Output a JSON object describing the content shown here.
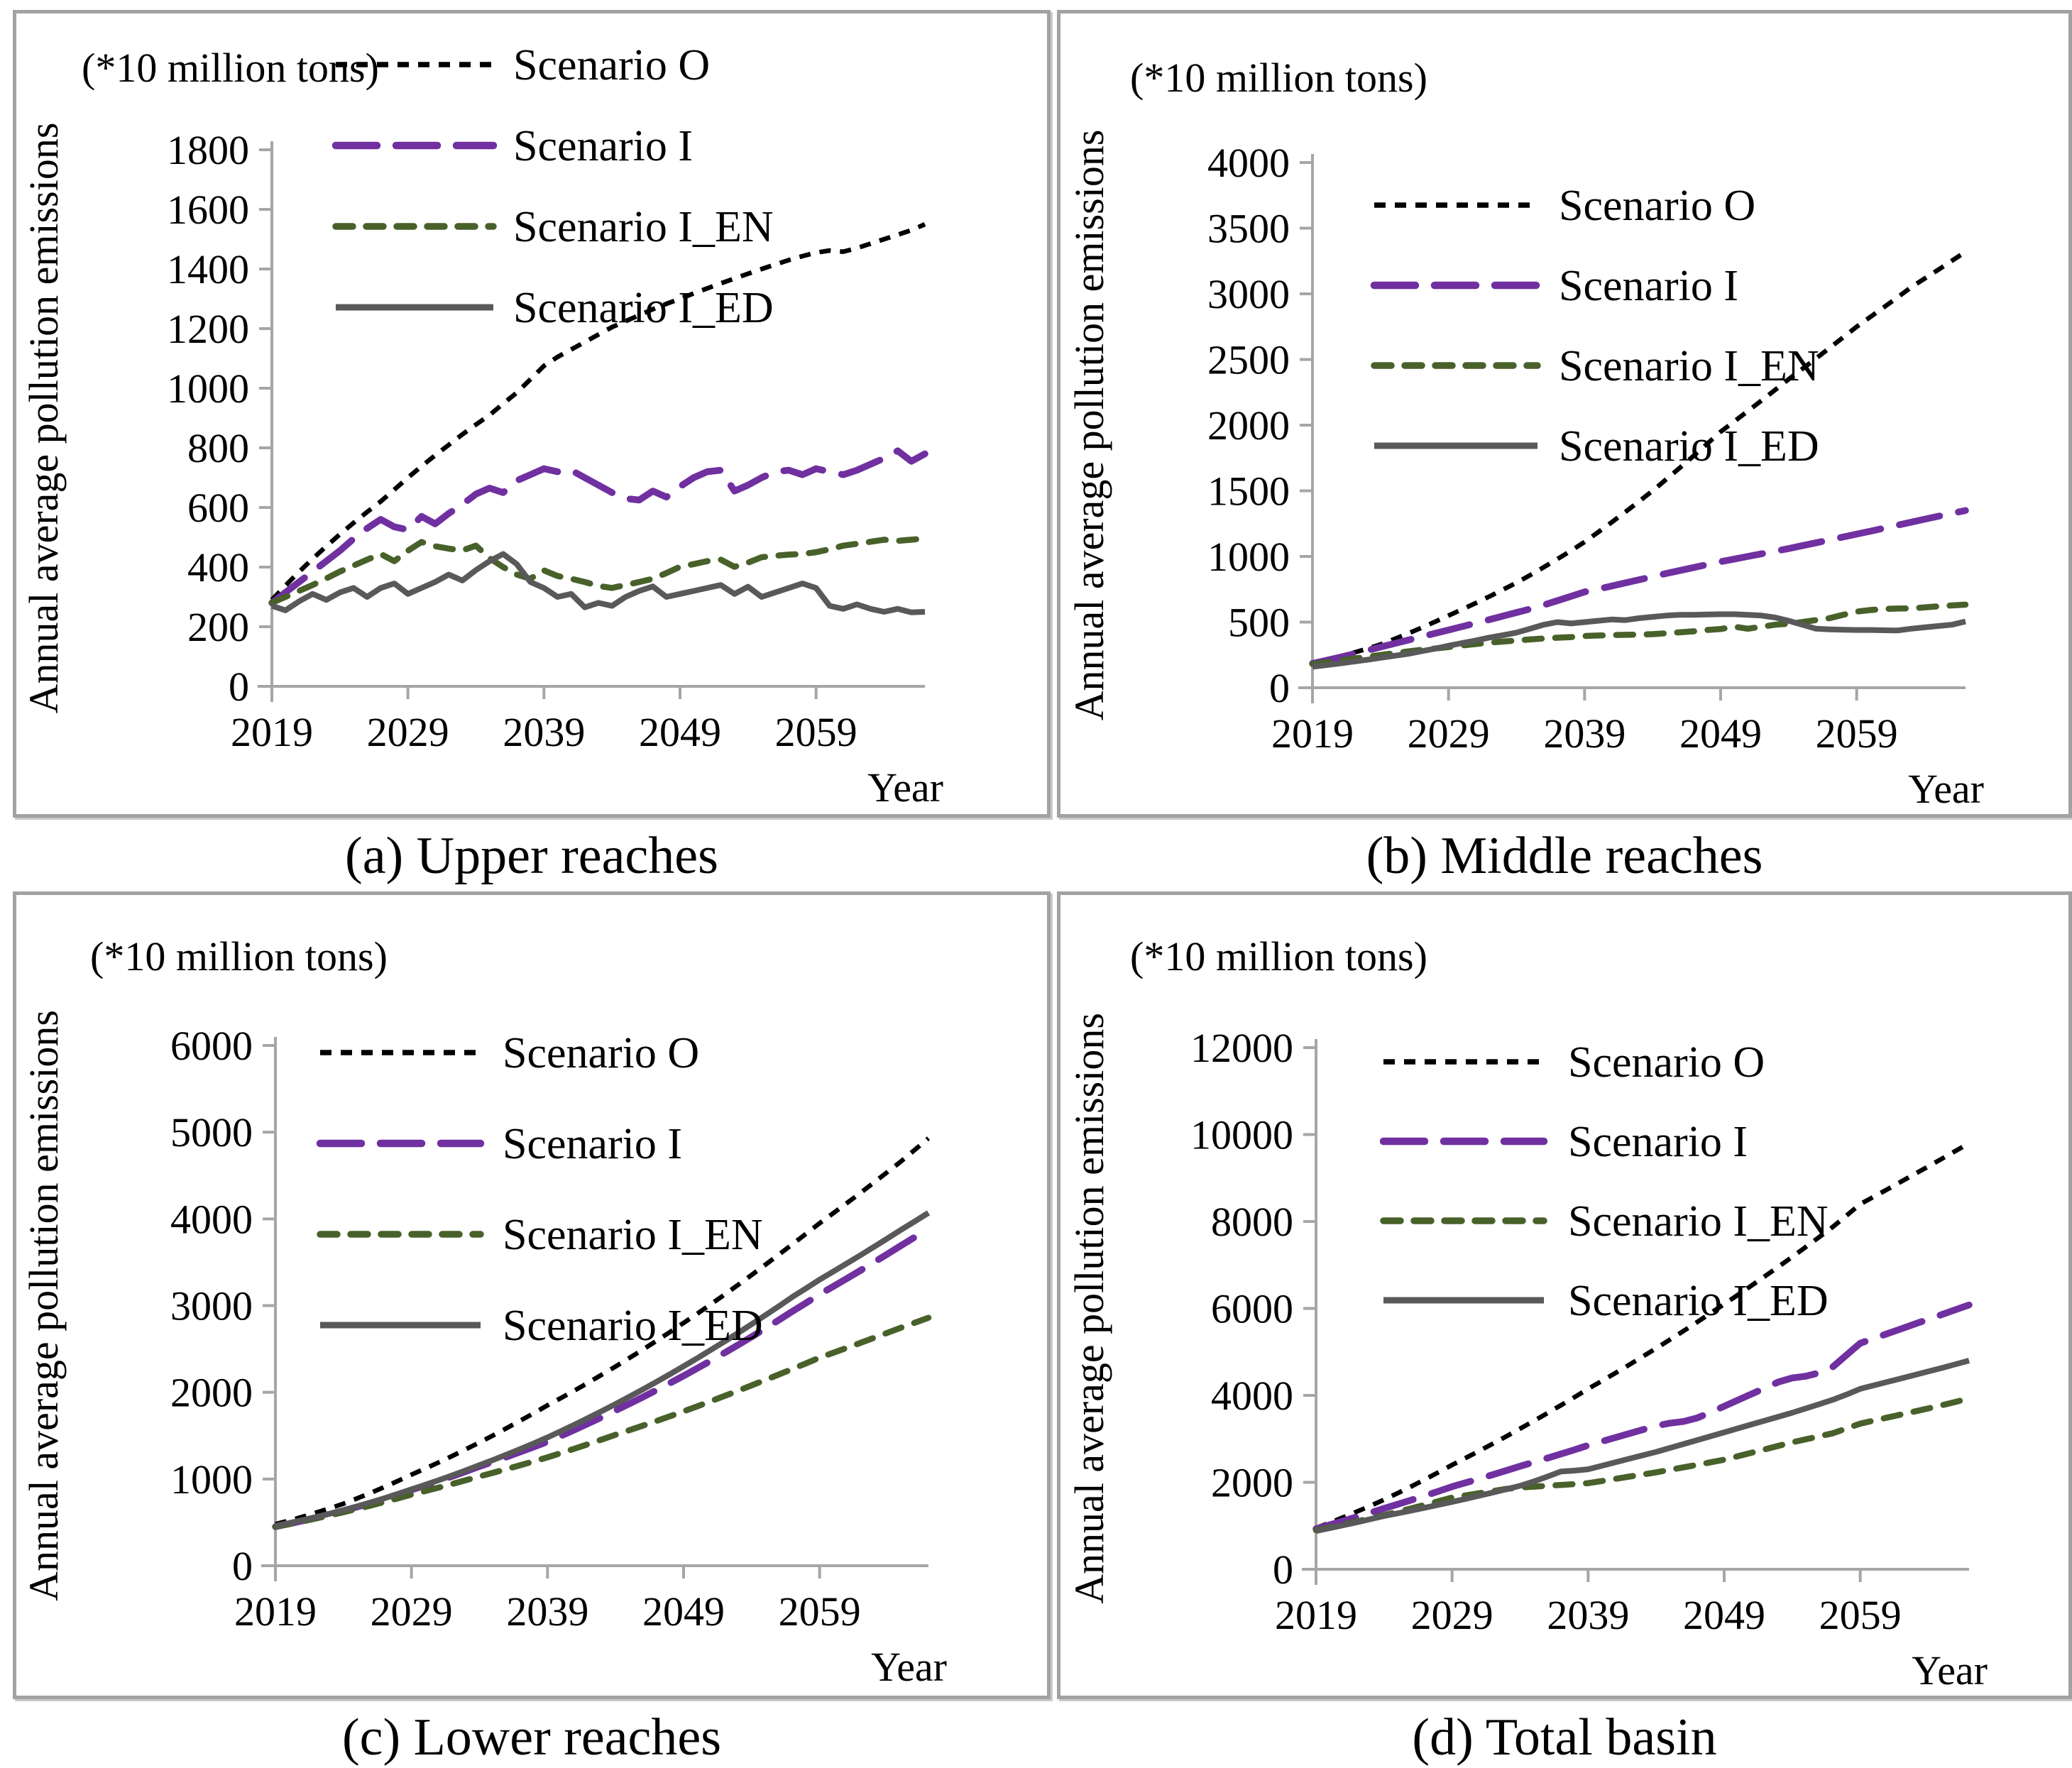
{
  "style": {
    "background": "#ffffff",
    "axis_color": "#a6a6a6",
    "text_color": "#000000",
    "scenario_colors": {
      "Scenario O": "#000000",
      "Scenario I": "#7030a0",
      "Scenario I_EN": "#48612a",
      "Scenario I_ED": "#595959"
    }
  },
  "chart_data": [
    {
      "type": "line",
      "caption": "(a) Upper reaches",
      "unit_label": "(*10 million tons)",
      "ylabel": "Annual average pollution emissions",
      "xlabel": "Year",
      "ylim": [
        0,
        1800
      ],
      "yticks": [
        0,
        200,
        400,
        600,
        800,
        1000,
        1200,
        1400,
        1600,
        1800
      ],
      "xticks": [
        2019,
        2029,
        2039,
        2049,
        2059
      ],
      "x_range": [
        2019,
        2067
      ],
      "grid": false,
      "legend_position": "top-left-inside",
      "series": [
        {
          "name": "Scenario O",
          "color": "#000000",
          "style": "dashed-small",
          "values": [
            290,
            338,
            384,
            428,
            470,
            510,
            548,
            585,
            620,
            660,
            700,
            738,
            775,
            810,
            845,
            878,
            910,
            948,
            985,
            1030,
            1075,
            1105,
            1130,
            1155,
            1180,
            1205,
            1225,
            1245,
            1265,
            1283,
            1300,
            1318,
            1335,
            1352,
            1368,
            1384,
            1400,
            1415,
            1430,
            1443,
            1455,
            1462,
            1458,
            1470,
            1485,
            1500,
            1515,
            1530,
            1550
          ]
        },
        {
          "name": "Scenario I",
          "color": "#7030a0",
          "style": "dashed-long",
          "values": [
            280,
            315,
            350,
            385,
            420,
            455,
            495,
            530,
            560,
            535,
            525,
            570,
            545,
            580,
            610,
            645,
            665,
            650,
            690,
            710,
            730,
            720,
            725,
            700,
            675,
            650,
            630,
            625,
            655,
            635,
            670,
            700,
            720,
            725,
            655,
            675,
            700,
            720,
            725,
            710,
            730,
            720,
            710,
            725,
            745,
            765,
            790,
            755,
            780
          ]
        },
        {
          "name": "Scenario I_EN",
          "color": "#48612a",
          "style": "dashed-medium",
          "values": [
            280,
            300,
            320,
            340,
            362,
            385,
            405,
            425,
            444,
            420,
            455,
            484,
            470,
            462,
            456,
            472,
            430,
            400,
            375,
            361,
            389,
            370,
            361,
            350,
            337,
            330,
            340,
            350,
            361,
            380,
            401,
            410,
            420,
            425,
            401,
            415,
            433,
            438,
            442,
            444,
            450,
            460,
            472,
            478,
            485,
            492,
            488,
            492,
            496
          ]
        },
        {
          "name": "Scenario I_ED",
          "color": "#595959",
          "style": "solid",
          "values": [
            270,
            255,
            285,
            310,
            290,
            315,
            330,
            300,
            330,
            345,
            310,
            330,
            350,
            375,
            355,
            390,
            420,
            444,
            410,
            350,
            330,
            300,
            310,
            265,
            280,
            270,
            300,
            320,
            335,
            300,
            310,
            320,
            330,
            340,
            310,
            334,
            300,
            315,
            330,
            345,
            330,
            270,
            260,
            275,
            260,
            250,
            260,
            248,
            250
          ]
        }
      ]
    },
    {
      "type": "line",
      "caption": "(b) Middle reaches",
      "unit_label": "(*10 million tons)",
      "ylabel": "Annual average pollution emissions",
      "xlabel": "Year",
      "ylim": [
        0,
        4000
      ],
      "yticks": [
        0,
        500,
        1000,
        1500,
        2000,
        2500,
        3000,
        3500,
        4000
      ],
      "xticks": [
        2019,
        2029,
        2039,
        2049,
        2059
      ],
      "x_range": [
        2019,
        2067
      ],
      "grid": false,
      "legend_position": "top-left-inside",
      "series": [
        {
          "name": "Scenario O",
          "color": "#000000",
          "style": "dashed-small",
          "values": [
            185,
            210,
            237,
            266,
            297,
            330,
            370,
            412,
            456,
            502,
            550,
            597,
            645,
            695,
            747,
            800,
            858,
            918,
            980,
            1044,
            1110,
            1185,
            1261,
            1339,
            1419,
            1500,
            1587,
            1675,
            1765,
            1857,
            1950,
            2028,
            2107,
            2187,
            2268,
            2350,
            2428,
            2507,
            2587,
            2668,
            2750,
            2824,
            2898,
            2973,
            3050,
            3117,
            3184,
            3252,
            3320
          ]
        },
        {
          "name": "Scenario I",
          "color": "#7030a0",
          "style": "dashed-long",
          "values": [
            185,
            208,
            232,
            257,
            283,
            310,
            336,
            362,
            388,
            414,
            440,
            466,
            492,
            519,
            546,
            573,
            600,
            630,
            663,
            696,
            730,
            752,
            775,
            799,
            822,
            846,
            870,
            893,
            915,
            938,
            960,
            980,
            1000,
            1020,
            1040,
            1060,
            1082,
            1104,
            1126,
            1148,
            1170,
            1192,
            1215,
            1238,
            1261,
            1284,
            1306,
            1328,
            1350
          ]
        },
        {
          "name": "Scenario I_EN",
          "color": "#48612a",
          "style": "dashed-medium",
          "values": [
            180,
            193,
            207,
            221,
            235,
            250,
            263,
            276,
            288,
            299,
            310,
            322,
            333,
            343,
            352,
            360,
            368,
            375,
            381,
            386,
            394,
            398,
            401,
            403,
            405,
            408,
            415,
            422,
            430,
            440,
            447,
            465,
            450,
            465,
            480,
            488,
            500,
            515,
            530,
            555,
            580,
            592,
            600,
            603,
            605,
            612,
            620,
            627,
            633
          ]
        },
        {
          "name": "Scenario I_ED",
          "color": "#595959",
          "style": "solid",
          "values": [
            160,
            172,
            185,
            199,
            213,
            228,
            243,
            258,
            278,
            298,
            320,
            340,
            360,
            382,
            400,
            420,
            450,
            480,
            500,
            490,
            500,
            510,
            520,
            515,
            530,
            540,
            550,
            555,
            555,
            558,
            560,
            560,
            555,
            550,
            535,
            510,
            480,
            450,
            445,
            442,
            440,
            440,
            438,
            436,
            450,
            460,
            470,
            480,
            505
          ]
        }
      ]
    },
    {
      "type": "line",
      "caption": "(c) Lower reaches",
      "unit_label": "(*10 million tons)",
      "ylabel": "Annual average pollution emissions",
      "xlabel": "Year",
      "ylim": [
        0,
        6000
      ],
      "yticks": [
        0,
        1000,
        2000,
        3000,
        4000,
        5000,
        6000
      ],
      "xticks": [
        2019,
        2029,
        2039,
        2049,
        2059
      ],
      "x_range": [
        2019,
        2067
      ],
      "grid": false,
      "legend_position": "top-left-inside",
      "series": [
        {
          "name": "Scenario O",
          "color": "#000000",
          "style": "dashed-small",
          "values": [
            480,
            520,
            565,
            613,
            663,
            715,
            776,
            840,
            907,
            977,
            1050,
            1120,
            1192,
            1266,
            1343,
            1422,
            1503,
            1587,
            1673,
            1760,
            1850,
            1935,
            2022,
            2112,
            2204,
            2298,
            2394,
            2492,
            2593,
            2695,
            2800,
            2906,
            3015,
            3125,
            3238,
            3353,
            3470,
            3588,
            3707,
            3828,
            3950,
            4065,
            4182,
            4300,
            4420,
            4542,
            4666,
            4797,
            4930
          ]
        },
        {
          "name": "Scenario I",
          "color": "#7030a0",
          "style": "dashed-long",
          "values": [
            450,
            483,
            518,
            555,
            594,
            635,
            678,
            723,
            772,
            822,
            875,
            925,
            977,
            1031,
            1087,
            1145,
            1200,
            1255,
            1312,
            1370,
            1430,
            1498,
            1568,
            1640,
            1714,
            1790,
            1866,
            1944,
            2024,
            2106,
            2190,
            2276,
            2364,
            2454,
            2546,
            2640,
            2736,
            2834,
            2934,
            3030,
            3130,
            3220,
            3312,
            3405,
            3500,
            3596,
            3694,
            3790,
            3890
          ]
        },
        {
          "name": "Scenario I_EN",
          "color": "#48612a",
          "style": "dashed-medium",
          "values": [
            450,
            480,
            512,
            546,
            581,
            617,
            655,
            694,
            735,
            777,
            820,
            860,
            901,
            943,
            986,
            1030,
            1072,
            1115,
            1159,
            1204,
            1250,
            1300,
            1351,
            1403,
            1456,
            1510,
            1562,
            1615,
            1669,
            1724,
            1780,
            1838,
            1897,
            1957,
            2018,
            2080,
            2142,
            2205,
            2269,
            2334,
            2400,
            2456,
            2513,
            2570,
            2628,
            2687,
            2746,
            2803,
            2860
          ]
        },
        {
          "name": "Scenario I_ED",
          "color": "#595959",
          "style": "solid",
          "values": [
            460,
            492,
            526,
            562,
            600,
            640,
            684,
            730,
            778,
            828,
            880,
            932,
            986,
            1042,
            1100,
            1160,
            1220,
            1282,
            1346,
            1412,
            1480,
            1553,
            1628,
            1705,
            1784,
            1865,
            1948,
            2033,
            2120,
            2209,
            2300,
            2393,
            2488,
            2585,
            2684,
            2785,
            2888,
            2993,
            3100,
            3199,
            3300,
            3392,
            3486,
            3581,
            3678,
            3776,
            3876,
            3972,
            4070
          ]
        }
      ]
    },
    {
      "type": "line",
      "caption": "(d) Total basin",
      "unit_label": "(*10 million tons)",
      "ylabel": "Annual average pollution emissions",
      "xlabel": "Year",
      "ylim": [
        0,
        12000
      ],
      "yticks": [
        0,
        2000,
        4000,
        6000,
        8000,
        10000,
        12000
      ],
      "xticks": [
        2019,
        2029,
        2039,
        2049,
        2059
      ],
      "x_range": [
        2019,
        2067
      ],
      "grid": false,
      "legend_position": "top-left-inside",
      "series": [
        {
          "name": "Scenario O",
          "color": "#000000",
          "style": "dashed-small",
          "values": [
            950,
            1070,
            1195,
            1325,
            1460,
            1600,
            1750,
            1905,
            2065,
            2230,
            2400,
            2560,
            2723,
            2890,
            3060,
            3234,
            3410,
            3590,
            3773,
            3960,
            4150,
            4330,
            4513,
            4700,
            4890,
            5083,
            5280,
            5480,
            5683,
            5890,
            6100,
            6310,
            6524,
            6741,
            6962,
            7186,
            7414,
            7645,
            7880,
            8138,
            8400,
            8570,
            8742,
            8916,
            9090,
            9266,
            9444,
            9621,
            9800
          ]
        },
        {
          "name": "Scenario I",
          "color": "#7030a0",
          "style": "dashed-long",
          "values": [
            930,
            1020,
            1112,
            1206,
            1302,
            1400,
            1495,
            1592,
            1692,
            1794,
            1900,
            1990,
            2082,
            2176,
            2272,
            2370,
            2462,
            2556,
            2652,
            2750,
            2850,
            2940,
            3030,
            3120,
            3210,
            3300,
            3360,
            3400,
            3480,
            3610,
            3750,
            3890,
            4030,
            4170,
            4310,
            4400,
            4440,
            4520,
            4660,
            4930,
            5200,
            5310,
            5420,
            5530,
            5640,
            5750,
            5860,
            5970,
            6080
          ]
        },
        {
          "name": "Scenario I_EN",
          "color": "#48612a",
          "style": "dashed-medium",
          "values": [
            900,
            965,
            1032,
            1100,
            1170,
            1242,
            1320,
            1400,
            1482,
            1565,
            1650,
            1700,
            1750,
            1800,
            1850,
            1880,
            1900,
            1920,
            1940,
            1960,
            1980,
            2030,
            2080,
            2130,
            2180,
            2230,
            2287,
            2344,
            2402,
            2460,
            2520,
            2600,
            2680,
            2760,
            2840,
            2920,
            2990,
            3060,
            3130,
            3240,
            3350,
            3420,
            3490,
            3560,
            3630,
            3700,
            3775,
            3850,
            3930
          ]
        },
        {
          "name": "Scenario I_ED",
          "color": "#595959",
          "style": "solid",
          "values": [
            880,
            945,
            1012,
            1081,
            1152,
            1225,
            1287,
            1350,
            1415,
            1482,
            1550,
            1620,
            1692,
            1766,
            1842,
            1920,
            2020,
            2130,
            2250,
            2270,
            2300,
            2380,
            2460,
            2540,
            2620,
            2700,
            2790,
            2880,
            2970,
            3060,
            3150,
            3240,
            3330,
            3420,
            3510,
            3600,
            3700,
            3800,
            3900,
            4020,
            4150,
            4230,
            4310,
            4390,
            4470,
            4550,
            4630,
            4715,
            4800
          ]
        }
      ]
    }
  ]
}
